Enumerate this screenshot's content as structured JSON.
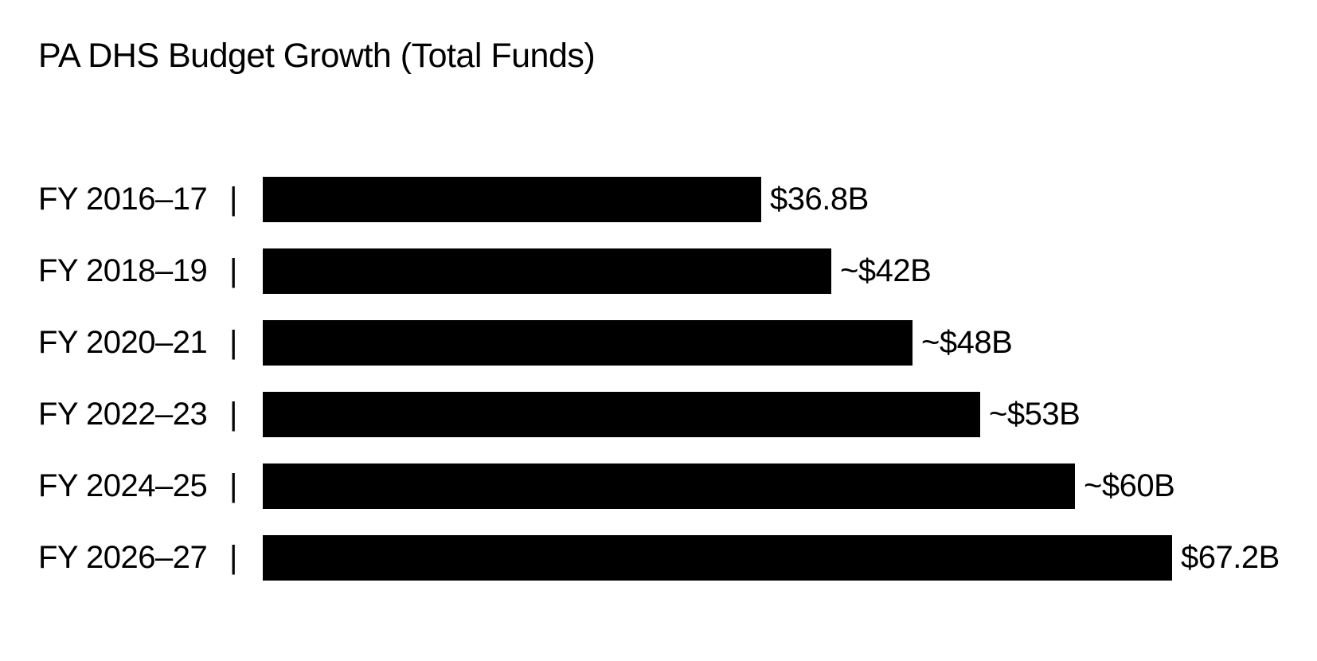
{
  "page": {
    "background_color": "#ffffff",
    "text_color": "#000000"
  },
  "chart_data": {
    "type": "bar",
    "orientation": "horizontal",
    "title": "PA DHS Budget Growth (Total Funds)",
    "categories": [
      "FY 2016–17",
      "FY 2018–19",
      "FY 2020–21",
      "FY 2022–23",
      "FY 2024–25",
      "FY 2026–27"
    ],
    "values": [
      36.8,
      42,
      48,
      53,
      60,
      67.2
    ],
    "value_labels": [
      "$36.8B",
      "~$42B",
      "~$48B",
      "~$53B",
      "~$60B",
      "$67.2B"
    ],
    "separator_glyph": "|",
    "xlim": [
      0,
      67.2
    ],
    "bar_color": "#000000",
    "grid": false,
    "legend": false,
    "value_label_position": "right-of-bar"
  }
}
